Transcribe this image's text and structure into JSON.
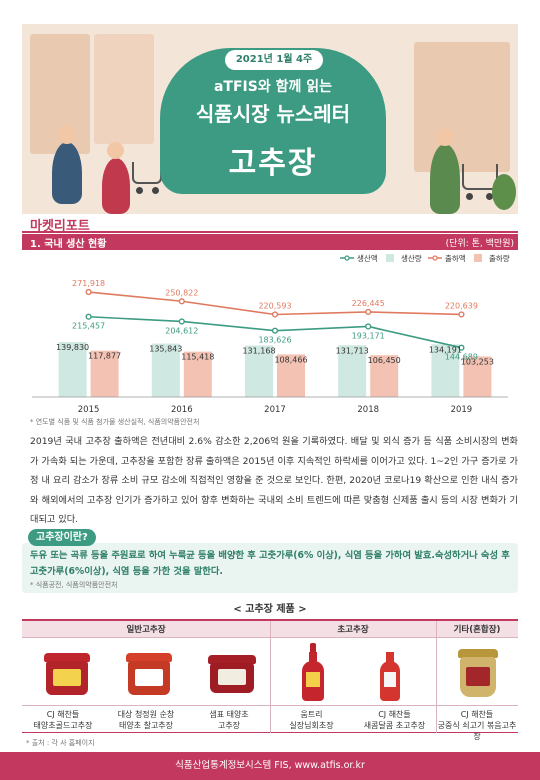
{
  "banner": {
    "date": "2021년 1월 4주",
    "line1": "aTFIS와 함께 읽는",
    "line2": "식품시장 뉴스레터",
    "line3": "고추장"
  },
  "section": {
    "title": "마켓리포트",
    "subtitle": "1. 국내 생산 현황",
    "unit": "(단위: 톤, 백만원)"
  },
  "chart_data": {
    "type": "bar+line",
    "categories": [
      "2015",
      "2016",
      "2017",
      "2018",
      "2019"
    ],
    "series": [
      {
        "name": "생산액",
        "kind": "line",
        "color": "#3c9b82",
        "values": [
          215457,
          204612,
          183626,
          193171,
          144689
        ]
      },
      {
        "name": "생산량",
        "kind": "bar",
        "color": "#cfe8e1",
        "values": [
          139830,
          135843,
          131168,
          131713,
          134191
        ]
      },
      {
        "name": "출하액",
        "kind": "line",
        "color": "#e07a5f",
        "values": [
          271918,
          250822,
          220593,
          226445,
          220639
        ]
      },
      {
        "name": "출하량",
        "kind": "bar",
        "color": "#f3c2b3",
        "values": [
          117877,
          115418,
          108466,
          106450,
          103253
        ]
      }
    ],
    "value_labels": {
      "생산액": [
        "215,457",
        "204,612",
        "183,626",
        "193,171",
        "144,689"
      ],
      "생산량": [
        "139,830",
        "135,843",
        "131,168",
        "131,713",
        "134,191"
      ],
      "출하액": [
        "271,918",
        "250,822",
        "220,593",
        "226,445",
        "220,639"
      ],
      "출하량": [
        "117,877",
        "115,418",
        "108,466",
        "106,450",
        "103,253"
      ]
    },
    "legend_position": "top-right",
    "grid": false,
    "source": "* 연도별 식품 및 식품 첨가물 생산실적, 식품의약품안전처"
  },
  "body": "2019년 국내 고추장 출하액은 전년대비 2.6% 감소한 2,206억 원을 기록하였다. 배달 및 외식 증가 등 식품 소비시장의 변화가 가속화 되는 가운데, 고추장을 포함한 장류 출하액은 2015년 이후 지속적인 하락세를 이어가고 있다. 1~2인 가구 증가로 가정 내 요리 감소가 장류 소비 규모 감소에 직접적인 영향을 준 것으로 보인다. 한편, 2020년 코로나19 확산으로 인한 내식 증가와 해외에서의 고추장 인기가 증가하고 있어 향후 변화하는 국내외 소비 트렌드에 따른 맞춤형 신제품 출시 등의 시장 변화가 기대되고 있다.",
  "definition": {
    "label": "고추장이란?",
    "text": "두유 또는 곡류 등을 주원료로 하여 누룩균 등을 배양한 후 고춧가루(6% 이상), 식염 등을 가하여 발효.숙성하거나 숙성 후 고춧가루(6%이상), 식염 등을 가한 것을 말한다.",
    "source": "* 식품공전, 식품의약품안전처"
  },
  "products": {
    "title": "< 고추장 제품 >",
    "categories": [
      "일반고추장",
      "초고추장",
      "기타(혼합장)"
    ],
    "items": [
      {
        "line1": "CJ 해찬들",
        "line2": "태양초골드고추장"
      },
      {
        "line1": "대상 청정원 순창",
        "line2": "태양초 찰고추장"
      },
      {
        "line1": "샘표 태양초",
        "line2": "고추장"
      },
      {
        "line1": "움트리",
        "line2": "실장님회초장"
      },
      {
        "line1": "CJ 해찬들",
        "line2": "새콤달콤 초고추장"
      },
      {
        "line1": "CJ 해찬들",
        "line2": "궁중식 쇠고기 볶음고추장"
      }
    ],
    "source": "* 출처 : 각 사 홈페이지"
  },
  "footer": "식품산업통계정보시스템 FIS, www.atfis.or.kr"
}
